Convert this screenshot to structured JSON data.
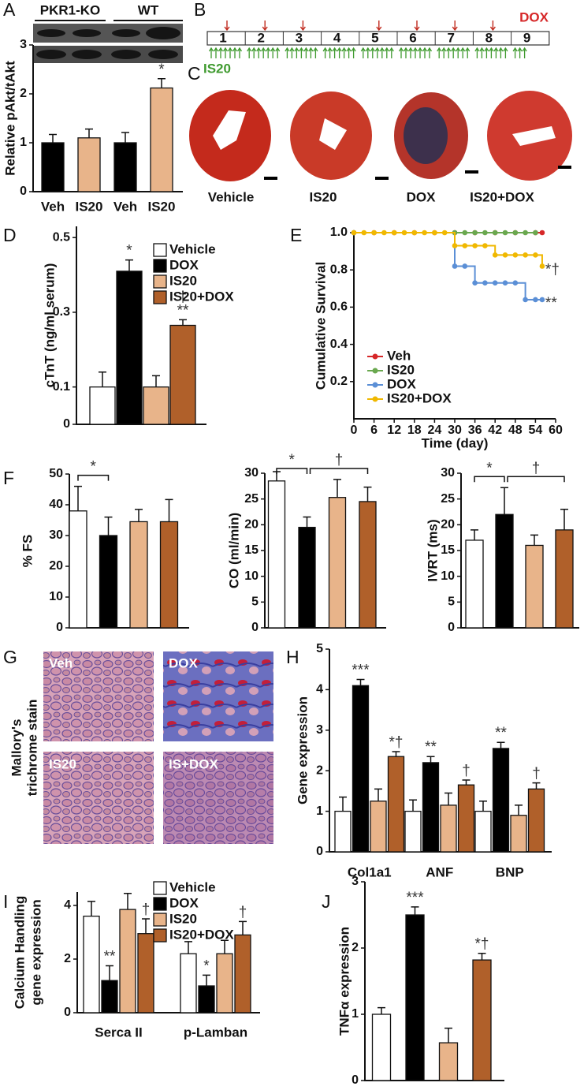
{
  "blot": {
    "groups": [
      "PKR1-KO",
      "WT"
    ]
  },
  "timeline": {
    "letter": "B",
    "weeks": [
      1,
      2,
      3,
      4,
      5,
      6,
      7,
      8,
      9
    ],
    "dox_label": "DOX",
    "is20_label": "IS20"
  },
  "heart_sections": {
    "letter": "C",
    "labels": [
      "Vehicle",
      "IS20",
      "DOX",
      "IS20+DOX"
    ]
  },
  "histology": {
    "letter": "G",
    "labels": [
      "Veh",
      "DOX",
      "IS20",
      "IS+DOX"
    ],
    "stain_label": [
      "Mallory's",
      "trichrome stain"
    ]
  },
  "chart_data": [
    {
      "type": "bar",
      "letter": "A",
      "ylabel": "Relative pAkt/tAkt",
      "categories": [
        "Veh",
        "IS20",
        "Veh",
        "IS20"
      ],
      "values": [
        1,
        1.1,
        1,
        2.12
      ],
      "errors": [
        0.17,
        0.18,
        0.21,
        0.19
      ],
      "colors": [
        "#000000",
        "#e8b48a",
        "#000000",
        "#e8b48a"
      ],
      "marks": [
        null,
        null,
        null,
        "*"
      ],
      "ylim": [
        0,
        3
      ],
      "yticks": [
        0,
        1,
        2,
        3
      ]
    },
    {
      "type": "bar",
      "letter": "D",
      "ylabel": "cTnT (ng/ml serum)",
      "categories": [
        null
      ],
      "series": [
        {
          "name": "Vehicle",
          "color": "#ffffff",
          "values": [
            0.1
          ],
          "errors": [
            0.04
          ]
        },
        {
          "name": "DOX",
          "color": "#000000",
          "values": [
            0.41
          ],
          "errors": [
            0.03
          ],
          "marks": [
            [
              "*"
            ]
          ]
        },
        {
          "name": "IS20",
          "color": "#e8b48a",
          "values": [
            0.1
          ],
          "errors": [
            0.03
          ]
        },
        {
          "name": "IS20+DOX",
          "color": "#b0602a",
          "values": [
            0.265
          ],
          "errors": [
            0.015
          ],
          "marks": [
            [
              "**",
              "†"
            ]
          ]
        }
      ],
      "ylim": [
        0,
        0.53
      ],
      "yticks": [
        0,
        0.1,
        0.3,
        0.5
      ]
    },
    {
      "type": "line",
      "letter": "E",
      "step": true,
      "ylabel": "Cumulative Survival",
      "xlabel": "Time (day)",
      "xlim": [
        0,
        60
      ],
      "xticks": [
        0,
        6,
        12,
        18,
        24,
        30,
        36,
        42,
        48,
        54,
        60
      ],
      "ylim": [
        0,
        1
      ],
      "yticks": [
        0.2,
        0.4,
        0.6,
        0.8,
        {
          "value": 1,
          "label": "1.0"
        }
      ],
      "series": [
        {
          "name": "Veh",
          "color": "#d62728",
          "x": [
            0,
            6,
            12,
            18,
            24,
            30,
            36,
            42,
            48,
            54,
            56
          ],
          "values": [
            1,
            1,
            1,
            1,
            1,
            1,
            1,
            1,
            1,
            1,
            1
          ]
        },
        {
          "name": "IS20",
          "color": "#6aa84f",
          "x": [
            0,
            30,
            33,
            36,
            39,
            42,
            45,
            48,
            51,
            54
          ],
          "values": [
            1,
            1,
            1,
            1,
            1,
            1,
            1,
            1,
            1,
            1
          ]
        },
        {
          "name": "DOX",
          "color": "#5b8fd6",
          "x": [
            0,
            30,
            33,
            36,
            39,
            42,
            45,
            48,
            51,
            54,
            56
          ],
          "values": [
            1,
            0.82,
            0.82,
            0.73,
            0.73,
            0.73,
            0.73,
            0.73,
            0.64,
            0.64,
            0.64
          ],
          "end_label": "**"
        },
        {
          "name": "IS20+DOX",
          "color": "#f0b800",
          "x": [
            0,
            3,
            6,
            9,
            12,
            15,
            18,
            21,
            24,
            27,
            30,
            33,
            36,
            39,
            42,
            45,
            48,
            51,
            54,
            56
          ],
          "values": [
            1,
            1,
            1,
            1,
            1,
            1,
            1,
            1,
            1,
            1,
            0.93,
            0.93,
            0.93,
            0.93,
            0.88,
            0.88,
            0.88,
            0.88,
            0.88,
            0.82
          ],
          "end_label": "*†"
        }
      ]
    },
    {
      "type": "bar",
      "letter": "F",
      "ylabel": "% FS",
      "values": [
        38,
        30,
        34.5,
        34.5
      ],
      "errors": [
        8,
        6,
        4,
        7.2
      ],
      "colors": [
        "#ffffff",
        "#000000",
        "#e8b48a",
        "#b0602a"
      ],
      "ylim": [
        0,
        50
      ],
      "yticks": [
        0,
        10,
        20,
        30,
        40,
        50
      ],
      "brackets": [
        {
          "text": "*",
          "from": 0,
          "to": 1
        }
      ]
    },
    {
      "type": "bar",
      "ylabel": "CO (ml/min)",
      "values": [
        28.5,
        19.5,
        25.3,
        24.5
      ],
      "errors": [
        1.8,
        2,
        3.5,
        2.8
      ],
      "colors": [
        "#ffffff",
        "#000000",
        "#e8b48a",
        "#b0602a"
      ],
      "ylim": [
        0,
        30
      ],
      "yticks": [
        0,
        5,
        10,
        15,
        20,
        25,
        30
      ],
      "brackets": [
        {
          "text": "*",
          "from": 0,
          "to": 1
        },
        {
          "text": "†",
          "from": 1,
          "to": 3
        }
      ]
    },
    {
      "type": "bar",
      "ylabel": "IVRT (ms)",
      "values": [
        17,
        22,
        16,
        19
      ],
      "errors": [
        2,
        5.2,
        2,
        4
      ],
      "colors": [
        "#ffffff",
        "#000000",
        "#e8b48a",
        "#b0602a"
      ],
      "ylim": [
        0,
        30
      ],
      "yticks": [
        0,
        5,
        10,
        15,
        20,
        25,
        30
      ],
      "brackets": [
        {
          "text": "*",
          "from": 0,
          "to": 1
        },
        {
          "text": "†",
          "from": 1,
          "to": 3
        }
      ]
    },
    {
      "type": "bar",
      "letter": "H",
      "ylabel": "Gene expression",
      "categories": [
        "Col1a1",
        "ANF",
        "BNP"
      ],
      "series": [
        {
          "color": "#ffffff",
          "values": [
            1,
            1,
            1
          ],
          "errors": [
            0.35,
            0.28,
            0.25
          ]
        },
        {
          "color": "#000000",
          "values": [
            4.1,
            2.2,
            2.55
          ],
          "errors": [
            0.15,
            0.15,
            0.15
          ],
          "marks": [
            [
              "***"
            ],
            [
              "**"
            ],
            [
              "**"
            ]
          ]
        },
        {
          "color": "#e8b48a",
          "values": [
            1.25,
            1.15,
            0.9
          ],
          "errors": [
            0.3,
            0.3,
            0.25
          ]
        },
        {
          "color": "#b0602a",
          "values": [
            2.35,
            1.65,
            1.55
          ],
          "errors": [
            0.12,
            0.12,
            0.15
          ],
          "marks": [
            [
              "*†"
            ],
            [
              "†"
            ],
            [
              "†"
            ]
          ]
        }
      ],
      "ylim": [
        0,
        5
      ],
      "yticks": [
        0,
        1,
        2,
        3,
        4,
        5
      ]
    },
    {
      "type": "bar",
      "letter": "I",
      "ylabel": [
        "Calcium Handling",
        "gene expression"
      ],
      "categories": [
        "Serca II",
        "p-Lamban"
      ],
      "series": [
        {
          "name": "Vehicle",
          "color": "#ffffff",
          "values": [
            3.6,
            2.2
          ],
          "errors": [
            0.55,
            0.45
          ]
        },
        {
          "name": "DOX",
          "color": "#000000",
          "values": [
            1.2,
            1.0
          ],
          "errors": [
            0.55,
            0.4
          ],
          "marks": [
            [
              "**"
            ],
            [
              "*"
            ]
          ]
        },
        {
          "name": "IS20",
          "color": "#e8b48a",
          "values": [
            3.85,
            2.2
          ],
          "errors": [
            0.6,
            0.5
          ]
        },
        {
          "name": "IS20+DOX",
          "color": "#b0602a",
          "values": [
            2.95,
            2.9
          ],
          "errors": [
            0.55,
            0.5
          ],
          "marks": [
            [
              "†"
            ],
            [
              "†"
            ]
          ]
        }
      ],
      "ylim": [
        0,
        4.5
      ],
      "yticks": [
        0,
        2,
        4
      ]
    },
    {
      "type": "bar",
      "letter": "J",
      "ylabel": "TNFα expression",
      "values": [
        1,
        2.5,
        0.57,
        1.82
      ],
      "errors": [
        0.1,
        0.12,
        0.22,
        0.1
      ],
      "colors": [
        "#ffffff",
        "#000000",
        "#e8b48a",
        "#b0602a"
      ],
      "marks": [
        null,
        "***",
        null,
        "*†"
      ],
      "ylim": [
        0,
        3
      ],
      "yticks": [
        0,
        1,
        2,
        3
      ]
    }
  ]
}
